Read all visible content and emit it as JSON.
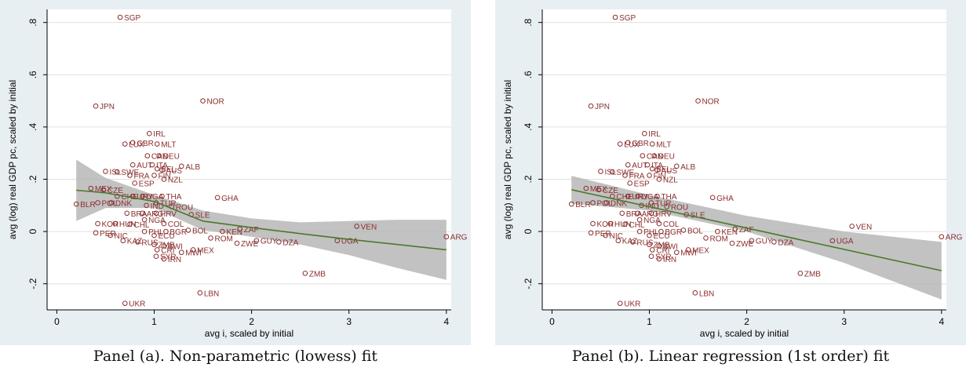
{
  "colors": {
    "background": "#e8eff3",
    "plot": "#ffffff",
    "marker": "#8b2f2f",
    "fit": "#4a7a2a",
    "band": "#b3b3b3",
    "grid": "#e1e1e1"
  },
  "chart_data": [
    {
      "type": "scatter",
      "caption": "Panel (a). Non-parametric (lowess) fit",
      "xlabel": "avg i, scaled by initial",
      "ylabel": "avg (log) real GDP pc, scaled by initial",
      "xlim": [
        -0.1,
        4.05
      ],
      "ylim": [
        -0.3,
        0.85
      ],
      "xticks": [
        "0",
        "1",
        "2",
        "3",
        "4"
      ],
      "yticks": [
        "-.2",
        "0",
        ".2",
        ".4",
        ".6",
        ".8"
      ],
      "grid": true,
      "fit": "lowess",
      "fit_line": [
        [
          0.2,
          0.158
        ],
        [
          0.5,
          0.148
        ],
        [
          1.0,
          0.115
        ],
        [
          1.5,
          0.04
        ],
        [
          2.0,
          0.015
        ],
        [
          2.5,
          -0.008
        ],
        [
          3.0,
          -0.03
        ],
        [
          3.5,
          -0.05
        ],
        [
          4.0,
          -0.07
        ]
      ],
      "band_upper": [
        [
          0.2,
          0.275
        ],
        [
          0.5,
          0.205
        ],
        [
          1.0,
          0.14
        ],
        [
          1.5,
          0.08
        ],
        [
          2.0,
          0.05
        ],
        [
          2.5,
          0.035
        ],
        [
          3.0,
          0.04
        ],
        [
          3.5,
          0.045
        ],
        [
          4.0,
          0.045
        ]
      ],
      "band_lower": [
        [
          0.2,
          0.04
        ],
        [
          0.5,
          0.09
        ],
        [
          1.0,
          0.09
        ],
        [
          1.5,
          0.005
        ],
        [
          2.0,
          -0.02
        ],
        [
          2.5,
          -0.05
        ],
        [
          3.0,
          -0.09
        ],
        [
          3.5,
          -0.14
        ],
        [
          4.0,
          -0.185
        ]
      ]
    },
    {
      "type": "scatter",
      "caption": "Panel (b). Linear regression (1st order) fit",
      "xlabel": "avg i, scaled by initial",
      "ylabel": "avg (log) real GDP pc, scaled by initial",
      "xlim": [
        -0.1,
        4.05
      ],
      "ylim": [
        -0.3,
        0.85
      ],
      "xticks": [
        "0",
        "1",
        "2",
        "3",
        "4"
      ],
      "yticks": [
        "-.2",
        "0",
        ".2",
        ".4",
        ".6",
        ".8"
      ],
      "grid": true,
      "fit": "linear",
      "fit_line": [
        [
          0.2,
          0.16
        ],
        [
          4.0,
          -0.15
        ]
      ],
      "band_upper": [
        [
          0.2,
          0.213
        ],
        [
          1.0,
          0.14
        ],
        [
          2.0,
          0.06
        ],
        [
          3.0,
          0.0
        ],
        [
          4.0,
          -0.04
        ]
      ],
      "band_lower": [
        [
          0.2,
          0.107
        ],
        [
          1.0,
          0.08
        ],
        [
          2.0,
          0.0
        ],
        [
          3.0,
          -0.12
        ],
        [
          4.0,
          -0.26
        ]
      ]
    }
  ],
  "points": [
    {
      "label": "SGP",
      "x": 0.65,
      "y": 0.82
    },
    {
      "label": "JPN",
      "x": 0.4,
      "y": 0.48
    },
    {
      "label": "NOR",
      "x": 1.5,
      "y": 0.5
    },
    {
      "label": "IRL",
      "x": 0.95,
      "y": 0.375
    },
    {
      "label": "GBR",
      "x": 0.78,
      "y": 0.34
    },
    {
      "label": "LUX",
      "x": 0.7,
      "y": 0.335
    },
    {
      "label": "MLT",
      "x": 1.03,
      "y": 0.335
    },
    {
      "label": "CAN",
      "x": 0.93,
      "y": 0.29
    },
    {
      "label": "DEU",
      "x": 1.05,
      "y": 0.29
    },
    {
      "label": "AUT",
      "x": 0.78,
      "y": 0.255
    },
    {
      "label": "ITA",
      "x": 0.98,
      "y": 0.255
    },
    {
      "label": "ALB",
      "x": 1.28,
      "y": 0.25
    },
    {
      "label": "BEL",
      "x": 1.03,
      "y": 0.24
    },
    {
      "label": "AUS",
      "x": 1.08,
      "y": 0.235
    },
    {
      "label": "ISL",
      "x": 0.5,
      "y": 0.23
    },
    {
      "label": "SWE",
      "x": 0.62,
      "y": 0.228
    },
    {
      "label": "FRA",
      "x": 0.75,
      "y": 0.215
    },
    {
      "label": "FIN",
      "x": 1.0,
      "y": 0.215
    },
    {
      "label": "NZL",
      "x": 1.1,
      "y": 0.2
    },
    {
      "label": "ESP",
      "x": 0.8,
      "y": 0.185
    },
    {
      "label": "MEX",
      "x": 0.35,
      "y": 0.165
    },
    {
      "label": "CZE",
      "x": 0.48,
      "y": 0.16
    },
    {
      "label": "GHA",
      "x": 1.65,
      "y": 0.13
    },
    {
      "label": "CHE",
      "x": 0.62,
      "y": 0.135
    },
    {
      "label": "URY",
      "x": 0.78,
      "y": 0.135
    },
    {
      "label": "UGA",
      "x": 0.88,
      "y": 0.135
    },
    {
      "label": "THA",
      "x": 1.08,
      "y": 0.135
    },
    {
      "label": "BLR",
      "x": 0.2,
      "y": 0.105
    },
    {
      "label": "POL",
      "x": 0.42,
      "y": 0.11
    },
    {
      "label": "DNK",
      "x": 0.56,
      "y": 0.11
    },
    {
      "label": "TUR",
      "x": 1.02,
      "y": 0.11
    },
    {
      "label": "IND",
      "x": 0.92,
      "y": 0.1
    },
    {
      "label": "ROU",
      "x": 1.18,
      "y": 0.095
    },
    {
      "label": "BRA",
      "x": 0.72,
      "y": 0.07
    },
    {
      "label": "ARG",
      "x": 0.88,
      "y": 0.07
    },
    {
      "label": "HRV",
      "x": 1.02,
      "y": 0.07
    },
    {
      "label": "SLE",
      "x": 1.38,
      "y": 0.065
    },
    {
      "label": "NGA",
      "x": 0.9,
      "y": 0.045
    },
    {
      "label": "KOR",
      "x": 0.42,
      "y": 0.03
    },
    {
      "label": "HUN",
      "x": 0.6,
      "y": 0.03
    },
    {
      "label": "CHL",
      "x": 0.75,
      "y": 0.028
    },
    {
      "label": "COL",
      "x": 1.1,
      "y": 0.03
    },
    {
      "label": "ZAF",
      "x": 1.88,
      "y": 0.01
    },
    {
      "label": "VEN",
      "x": 3.08,
      "y": 0.02
    },
    {
      "label": "KEN",
      "x": 1.7,
      "y": 0.0
    },
    {
      "label": "BOL",
      "x": 1.35,
      "y": 0.005
    },
    {
      "label": "PER",
      "x": 0.4,
      "y": -0.005
    },
    {
      "label": "PHL",
      "x": 0.9,
      "y": 0.0
    },
    {
      "label": "BGR",
      "x": 1.12,
      "y": 0.0
    },
    {
      "label": "NIC",
      "x": 0.55,
      "y": -0.015
    },
    {
      "label": "ECU",
      "x": 1.0,
      "y": -0.015
    },
    {
      "label": "ROM",
      "x": 1.58,
      "y": -0.025
    },
    {
      "label": "GUY",
      "x": 2.05,
      "y": -0.035
    },
    {
      "label": "DZA",
      "x": 2.28,
      "y": -0.04
    },
    {
      "label": "UGA",
      "x": 2.88,
      "y": -0.035
    },
    {
      "label": "ARG",
      "x": 4.0,
      "y": -0.02
    },
    {
      "label": "ZWE",
      "x": 1.85,
      "y": -0.045
    },
    {
      "label": "KAZ",
      "x": 0.68,
      "y": -0.035
    },
    {
      "label": "RUS",
      "x": 0.83,
      "y": -0.04
    },
    {
      "label": "ZMB",
      "x": 1.0,
      "y": -0.05
    },
    {
      "label": "BWI",
      "x": 1.1,
      "y": -0.055
    },
    {
      "label": "MEX",
      "x": 1.4,
      "y": -0.07
    },
    {
      "label": "CRI",
      "x": 1.03,
      "y": -0.07
    },
    {
      "label": "MWI",
      "x": 1.28,
      "y": -0.08
    },
    {
      "label": "SYR",
      "x": 1.02,
      "y": -0.095
    },
    {
      "label": "IRN",
      "x": 1.1,
      "y": -0.105
    },
    {
      "label": "ZMB",
      "x": 2.55,
      "y": -0.16
    },
    {
      "label": "LBN",
      "x": 1.47,
      "y": -0.235
    },
    {
      "label": "UKR",
      "x": 0.7,
      "y": -0.275
    }
  ]
}
